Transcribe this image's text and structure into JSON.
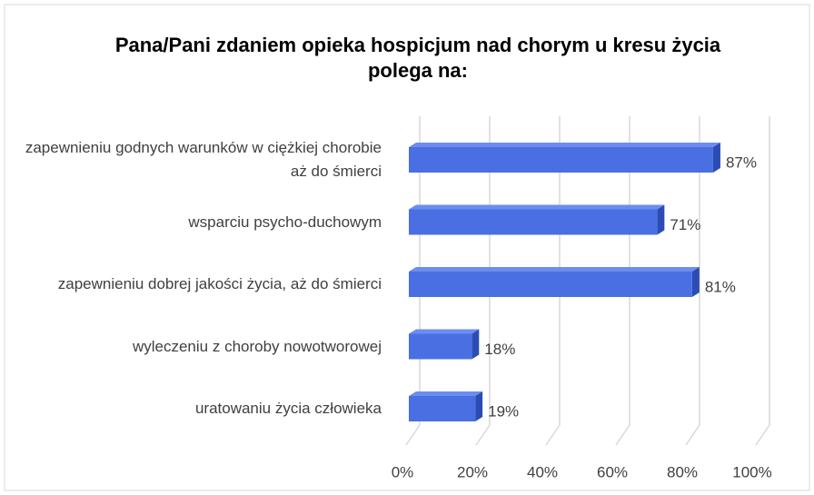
{
  "chart_data": {
    "type": "bar",
    "orientation": "horizontal",
    "three_d": true,
    "title": "Pana/Pani zdaniem opieka hospicjum nad chorym u kresu życia polega na:",
    "categories": [
      "zapewnieniu godnych warunków w ciężkiej chorobie aż do śmierci",
      "wsparciu psycho-duchowym",
      "zapewnieniu dobrej jakości życia, aż do śmierci",
      "wyleczeniu z choroby nowotworowej",
      "uratowaniu życia człowieka"
    ],
    "values": [
      87,
      71,
      81,
      18,
      19
    ],
    "value_labels": [
      "87%",
      "71%",
      "81%",
      "18%",
      "19%"
    ],
    "color": "#4a6fe3",
    "xlim": [
      0,
      100
    ],
    "xticks": [
      {
        "value": 0,
        "label": "0%"
      },
      {
        "value": 20,
        "label": "20%"
      },
      {
        "value": 40,
        "label": "40%"
      },
      {
        "value": 60,
        "label": "60%"
      },
      {
        "value": 80,
        "label": "80%"
      },
      {
        "value": 100,
        "label": "100%"
      }
    ],
    "grid": true
  }
}
